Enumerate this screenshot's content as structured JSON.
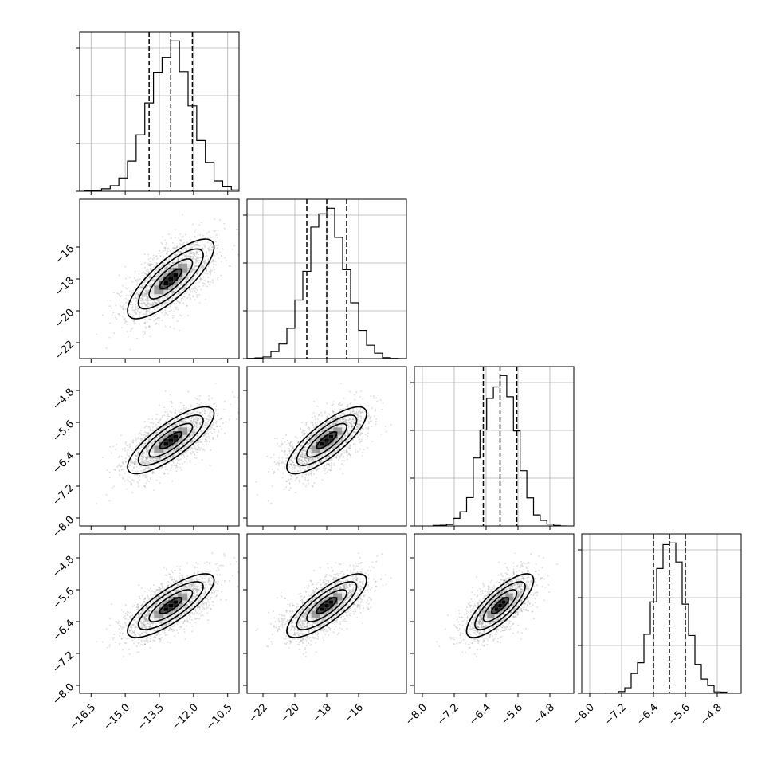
{
  "chart_data": {
    "type": "corner",
    "grid": true,
    "parameters": [
      {
        "center": -13.0,
        "sigma": 0.95,
        "range": [
          -17.0,
          -10.0
        ],
        "quantiles": [
          -13.95,
          -13.0,
          -12.05
        ],
        "ticks": [
          -16.5,
          -15.0,
          -13.5,
          -12.0,
          -10.5
        ],
        "tick_labels": [
          "−16.5",
          "−15.0",
          "−13.5",
          "−12.0",
          "−10.5"
        ]
      },
      {
        "center": -18.0,
        "sigma": 1.25,
        "range": [
          -23.0,
          -13.0
        ],
        "quantiles": [
          -19.25,
          -18.0,
          -16.75
        ],
        "ticks": [
          -22,
          -20,
          -18,
          -16
        ],
        "tick_labels": [
          "−22",
          "−20",
          "−18",
          "−16"
        ]
      },
      {
        "center": -6.05,
        "sigma": 0.42,
        "range": [
          -8.2,
          -4.2
        ],
        "quantiles": [
          -6.47,
          -6.05,
          -5.63
        ],
        "ticks": [
          -8.0,
          -7.2,
          -6.4,
          -5.6,
          -4.8
        ],
        "tick_labels": [
          "−8.0",
          "−7.2",
          "−6.4",
          "−5.6",
          "−4.8"
        ]
      },
      {
        "center": -6.0,
        "sigma": 0.4,
        "range": [
          -8.2,
          -4.2
        ],
        "quantiles": [
          -6.4,
          -6.0,
          -5.6
        ],
        "ticks": [
          -8.0,
          -7.2,
          -6.4,
          -5.6,
          -4.8
        ],
        "tick_labels": [
          "−8.0",
          "−7.2",
          "−6.4",
          "−5.6",
          "−4.8"
        ]
      }
    ],
    "correlation": 0.8,
    "histogram_bins": 20,
    "contour_levels_sigma": [
      0.5,
      1.0,
      1.5,
      2.0
    ],
    "colors": {
      "frame": "#000000",
      "grid": "#b0b0b0",
      "scatter": "#7f7f7f",
      "density": "#000000"
    }
  }
}
